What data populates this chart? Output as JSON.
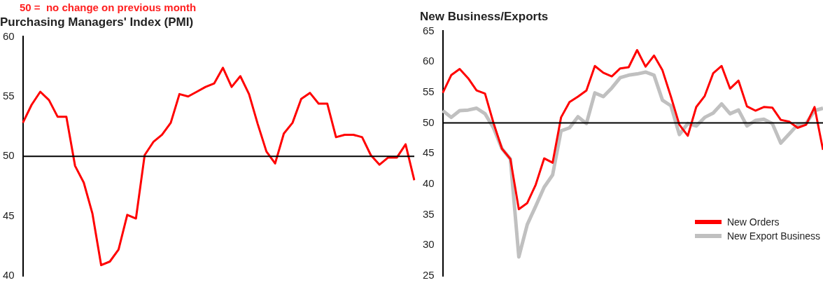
{
  "chart_data": [
    {
      "type": "line",
      "title": "Purchasing Managers' Index (PMI)",
      "annotations": [
        "50 =  no change on previous month"
      ],
      "categories": [
        null,
        null,
        null,
        null,
        null,
        null,
        null,
        null,
        null,
        null,
        null,
        null,
        null,
        null,
        null,
        null,
        null,
        null,
        null,
        null,
        null,
        null,
        null,
        null,
        null,
        null,
        null,
        null,
        null,
        null,
        null,
        null,
        null,
        null,
        null,
        null,
        null,
        null,
        null,
        null,
        null,
        null,
        null,
        null,
        null,
        null
      ],
      "series": [
        {
          "color": "#ff0000",
          "values": [
            52.8,
            54.3,
            55.4,
            54.7,
            53.3,
            53.3,
            49.2,
            47.8,
            45.2,
            40.9,
            41.2,
            42.2,
            45.1,
            44.8,
            50.1,
            51.2,
            51.8,
            52.8,
            55.2,
            55.0,
            55.4,
            55.8,
            56.1,
            57.4,
            55.8,
            56.7,
            55.2,
            52.7,
            50.4,
            49.4,
            51.9,
            52.8,
            54.8,
            55.3,
            54.4,
            54.4,
            51.6,
            51.8,
            51.8,
            51.6,
            50.1,
            49.3,
            49.9,
            49.9,
            51.0,
            48.0
          ]
        }
      ],
      "ylim": [
        40,
        60
      ],
      "yticks": [
        40,
        45,
        50,
        55,
        60
      ],
      "ref_lines": [
        {
          "axis": "y",
          "value": 50,
          "color": "#000000"
        }
      ],
      "tick_labels": "y",
      "marker": "none",
      "line_style": "solid"
    },
    {
      "type": "line",
      "title": "New Business/Exports",
      "categories": [
        null,
        null,
        null,
        null,
        null,
        null,
        null,
        null,
        null,
        null,
        null,
        null,
        null,
        null,
        null,
        null,
        null,
        null,
        null,
        null,
        null,
        null,
        null,
        null,
        null,
        null,
        null,
        null,
        null,
        null,
        null,
        null,
        null,
        null,
        null,
        null,
        null,
        null,
        null,
        null,
        null,
        null,
        null,
        null,
        null,
        null
      ],
      "series": [
        {
          "name": "New Orders",
          "color": "#ff0000",
          "values": [
            54.9,
            57.8,
            58.8,
            57.3,
            55.3,
            54.8,
            50.0,
            45.8,
            44.1,
            35.9,
            36.9,
            39.9,
            44.2,
            43.5,
            50.9,
            53.4,
            54.3,
            55.3,
            59.3,
            58.2,
            57.6,
            58.9,
            59.1,
            61.9,
            59.2,
            61.0,
            58.6,
            54.3,
            49.7,
            47.9,
            52.6,
            54.4,
            58.1,
            59.3,
            55.6,
            56.9,
            52.7,
            52.0,
            52.6,
            52.5,
            50.5,
            50.2,
            49.2,
            49.7,
            52.6,
            45.6
          ]
        },
        {
          "name": "New Export Business",
          "color": "#c0c0c0",
          "values": [
            52.0,
            50.9,
            52.0,
            52.1,
            52.4,
            51.5,
            49.2,
            45.8,
            44.1,
            28.1,
            33.4,
            36.4,
            39.5,
            41.5,
            48.7,
            49.2,
            51.0,
            49.9,
            54.9,
            54.3,
            55.7,
            57.4,
            57.8,
            58.0,
            58.3,
            57.8,
            53.7,
            52.8,
            48.1,
            49.9,
            49.5,
            50.9,
            51.6,
            53.1,
            51.5,
            52.1,
            49.5,
            50.4,
            50.6,
            49.9,
            46.7,
            48.2,
            49.7,
            49.9,
            52.0,
            52.4
          ]
        }
      ],
      "ylim": [
        25,
        65
      ],
      "yticks": [
        25,
        30,
        35,
        40,
        45,
        50,
        55,
        60,
        65
      ],
      "ref_lines": [
        {
          "axis": "y",
          "value": 50,
          "color": "#000000"
        }
      ],
      "tick_labels": "y",
      "legend": "bottom right",
      "marker": "none",
      "line_style": "solid"
    }
  ]
}
